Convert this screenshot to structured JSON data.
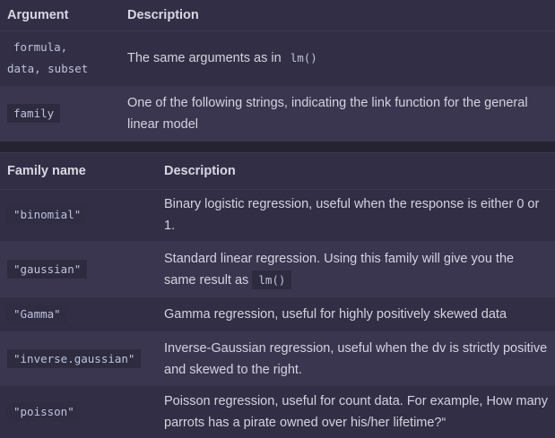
{
  "arguments_table": {
    "headers": [
      "Argument",
      "Description"
    ],
    "rows": [
      {
        "argument_line1": "formula,",
        "argument_line2": "data, subset",
        "description": "The same arguments as in",
        "description_code": "lm()"
      },
      {
        "argument": "family",
        "description": "One of the following strings, indicating the link function for the general linear model"
      }
    ]
  },
  "family_table": {
    "headers": [
      "Family name",
      "Description"
    ],
    "rows": [
      {
        "name": "\"binomial\"",
        "description": "Binary logistic regression, useful when the response is either 0 or 1."
      },
      {
        "name": "\"gaussian\"",
        "description": "Standard linear regression. Using this family will give you the same result as",
        "description_code": "lm()"
      },
      {
        "name": "\"Gamma\"",
        "description": "Gamma regression, useful for highly positively skewed data"
      },
      {
        "name": "\"inverse.gaussian\"",
        "description": "Inverse-Gaussian regression, useful when the dv is strictly positive and skewed to the right."
      },
      {
        "name": "\"poisson\"",
        "description": "Poisson regression, useful for count data. For example, How many parrots has a pirate owned over his/her lifetime?“"
      }
    ]
  }
}
